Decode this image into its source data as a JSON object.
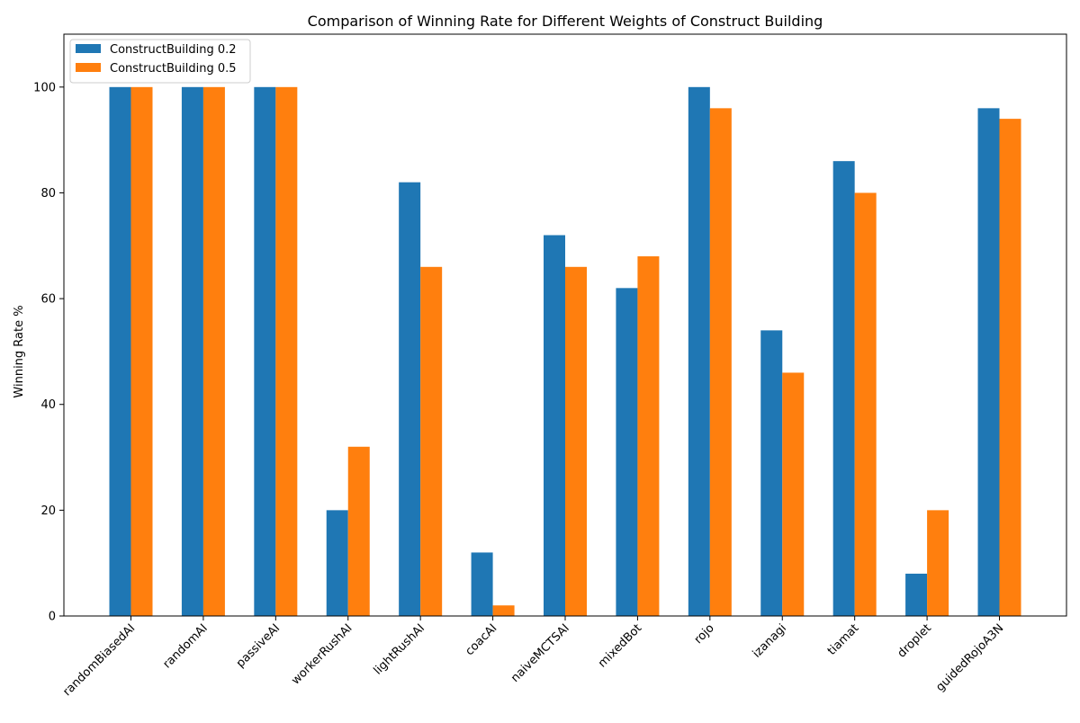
{
  "chart_data": {
    "type": "bar",
    "title": "Comparison of Winning Rate for Different Weights of Construct Building",
    "xlabel": "",
    "ylabel": "Winning Rate %",
    "ylim": [
      0,
      110
    ],
    "yticks": [
      0,
      20,
      40,
      60,
      80,
      100
    ],
    "grid": false,
    "legend_position": "top-left",
    "categories": [
      "randomBiasedAI",
      "randomAI",
      "passiveAI",
      "workerRushAI",
      "lightRushAI",
      "coacAI",
      "naiveMCTSAI",
      "mixedBot",
      "rojo",
      "izanagi",
      "tiamat",
      "droplet",
      "guidedRojoA3N"
    ],
    "series": [
      {
        "name": "ConstructBuilding 0.2",
        "color": "#1f77b4",
        "values": [
          100,
          100,
          100,
          20,
          82,
          12,
          72,
          62,
          100,
          54,
          86,
          8,
          96
        ]
      },
      {
        "name": "ConstructBuilding 0.5",
        "color": "#ff7f0e",
        "values": [
          100,
          100,
          100,
          32,
          66,
          2,
          66,
          68,
          96,
          46,
          80,
          20,
          94
        ]
      }
    ]
  }
}
